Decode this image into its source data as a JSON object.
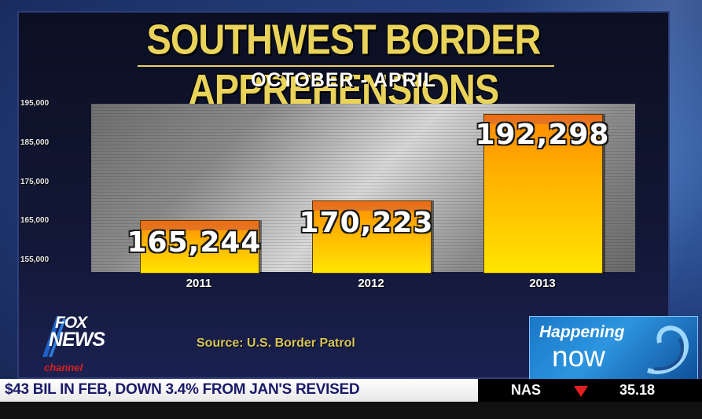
{
  "chart_data": {
    "type": "bar",
    "title": "SOUTHWEST BORDER APPREHENSIONS",
    "subtitle": "OCTOBER - APRIL",
    "categories": [
      "2011",
      "2012",
      "2013"
    ],
    "values": [
      165244,
      170223,
      192298
    ],
    "value_labels": [
      "165,244",
      "170,223",
      "192,298"
    ],
    "yticks": [
      "195,000",
      "185,000",
      "175,000",
      "165,000",
      "155,000"
    ],
    "ytick_values": [
      195000,
      185000,
      175000,
      165000,
      155000
    ],
    "ylim": [
      152000,
      195000
    ],
    "xlabel": "",
    "ylabel": "",
    "bar_color": "#ffc400",
    "source": "Source: U.S. Border Patrol"
  },
  "branding": {
    "logo_fox": "FOX",
    "logo_news": "NEWS",
    "logo_channel": "channel",
    "show_top": "Happening",
    "show_bottom": "now"
  },
  "ticker": {
    "headline": "$43 BIL IN FEB, DOWN 3.4% FROM JAN'S REVISED",
    "symbol": "NAS",
    "value": "35.18",
    "direction": "down",
    "arrow_color": "#e02020"
  }
}
